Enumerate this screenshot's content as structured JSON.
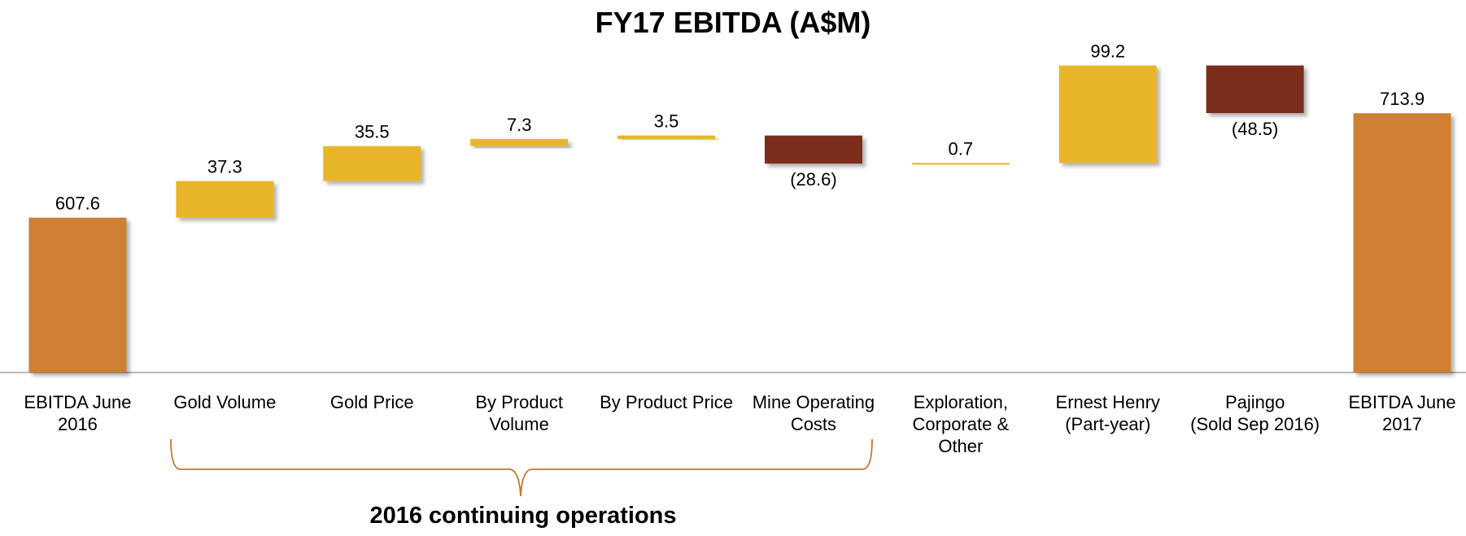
{
  "chart_data": {
    "type": "waterfall",
    "title": "FY17 EBITDA (A$M)",
    "categories": [
      "EBITDA June\n2016",
      "Gold Volume",
      "Gold Price",
      "By Product\nVolume",
      "By Product Price",
      "Mine Operating\nCosts",
      "Exploration,\nCorporate &\nOther",
      "Ernest Henry\n(Part-year)",
      "Pajingo\n(Sold Sep 2016)",
      "EBITDA June\n2017"
    ],
    "values": [
      607.6,
      37.3,
      35.5,
      7.3,
      3.5,
      -28.6,
      0.7,
      99.2,
      -48.5,
      713.9
    ],
    "value_labels": [
      "607.6",
      "37.3",
      "35.5",
      "7.3",
      "3.5",
      "(28.6)",
      "0.7",
      "99.2",
      "(48.5)",
      "713.9"
    ],
    "is_total": [
      true,
      false,
      false,
      false,
      false,
      false,
      false,
      false,
      false,
      true
    ],
    "colors": {
      "total": "#D08030",
      "increase": "#E8B42A",
      "decrease": "#7B2F1E"
    },
    "ylim": [
      450,
      800
    ],
    "annotation": "2016 continuing operations"
  }
}
